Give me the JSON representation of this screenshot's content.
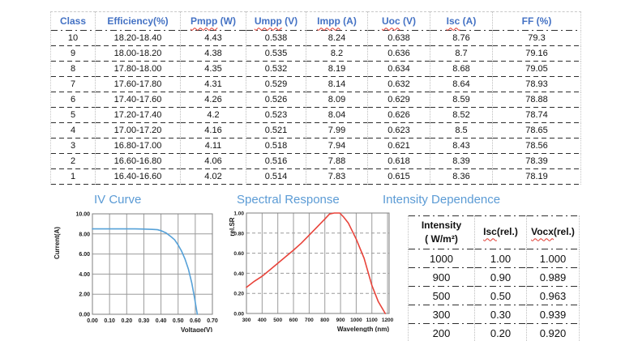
{
  "colors": {
    "header_blue": "#4472c4",
    "title_blue": "#5b9bd5",
    "iv_line": "#56a1d8",
    "sr_line": "#e8433a",
    "squiggle_red": "#e0372e",
    "grid_gray": "#9b9b9b",
    "plot_border": "#7f7f7f"
  },
  "class_table": {
    "headers": [
      {
        "wavy": "",
        "rest": "Class"
      },
      {
        "wavy": "",
        "rest": "Efficiency(%)"
      },
      {
        "wavy": "Pmpp",
        "rest": " (W)"
      },
      {
        "wavy": "Umpp",
        "rest": " (V)"
      },
      {
        "wavy": "Impp",
        "rest": " (A)"
      },
      {
        "wavy": "Uoc",
        "rest": " (V)"
      },
      {
        "wavy": "Isc",
        "rest": " (A)"
      },
      {
        "wavy": "",
        "rest": "FF (%)"
      }
    ],
    "rows": [
      [
        "10",
        "18.20-18.40",
        "4.43",
        "0.538",
        "8.24",
        "0.638",
        "8.76",
        "79.3"
      ],
      [
        "9",
        "18.00-18.20",
        "4.38",
        "0.535",
        "8.2",
        "0.636",
        "8.7",
        "79.16"
      ],
      [
        "8",
        "17.80-18.00",
        "4.35",
        "0.532",
        "8.19",
        "0.634",
        "8.68",
        "79.05"
      ],
      [
        "7",
        "17.60-17.80",
        "4.31",
        "0.529",
        "8.14",
        "0.632",
        "8.64",
        "78.93"
      ],
      [
        "6",
        "17.40-17.60",
        "4.26",
        "0.526",
        "8.09",
        "0.629",
        "8.59",
        "78.88"
      ],
      [
        "5",
        "17.20-17.40",
        "4.2",
        "0.523",
        "8.04",
        "0.626",
        "8.52",
        "78.74"
      ],
      [
        "4",
        "17.00-17.20",
        "4.16",
        "0.521",
        "7.99",
        "0.623",
        "8.5",
        "78.65"
      ],
      [
        "3",
        "16.80-17.00",
        "4.11",
        "0.518",
        "7.94",
        "0.621",
        "8.43",
        "78.56"
      ],
      [
        "2",
        "16.60-16.80",
        "4.06",
        "0.516",
        "7.88",
        "0.618",
        "8.39",
        "78.39"
      ],
      [
        "1",
        "16.40-16.60",
        "4.02",
        "0.514",
        "7.83",
        "0.615",
        "8.36",
        "78.19"
      ]
    ]
  },
  "sections": {
    "iv_title": "IV Curve",
    "sr_title": "Spectral Response",
    "intensity_title": "Intensity Dependence"
  },
  "intensity_table": {
    "header_intensity_line1": "Intensity",
    "header_intensity_line2": "( W/m²)",
    "header_isc": {
      "wavy": "Isc",
      "rest": "(rel.)"
    },
    "header_voc": {
      "wavy": "Vocx",
      "rest": "(rel.)"
    },
    "rows": [
      [
        "1000",
        "1.00",
        "1.000"
      ],
      [
        "900",
        "0.90",
        "0.989"
      ],
      [
        "500",
        "0.50",
        "0.963"
      ],
      [
        "300",
        "0.30",
        "0.939"
      ],
      [
        "200",
        "0.20",
        "0.920"
      ]
    ]
  },
  "chart_data": [
    {
      "type": "line",
      "title": "IV Curve",
      "xlabel": "Voltage(V)",
      "ylabel": "Current(A)",
      "xlim": [
        0,
        0.7
      ],
      "ylim": [
        0,
        10
      ],
      "xtick_vals": [
        0,
        0.1,
        0.2,
        0.3,
        0.4,
        0.5,
        0.6,
        0.7
      ],
      "xtick_labels": [
        "0.00",
        "0.10",
        "0.20",
        "0.30",
        "0.40",
        "0.50",
        "0.60",
        "0.70"
      ],
      "ytick_vals": [
        0,
        2,
        4,
        6,
        8,
        10
      ],
      "ytick_labels": [
        "0.00",
        "2.00",
        "4.00",
        "6.00",
        "8.00",
        "10.00"
      ],
      "grid": "solid",
      "hgrid_dashed": false,
      "legend": "none",
      "line_color": "#56a1d8",
      "points": [
        [
          0,
          8.5
        ],
        [
          0.05,
          8.5
        ],
        [
          0.1,
          8.5
        ],
        [
          0.15,
          8.5
        ],
        [
          0.2,
          8.5
        ],
        [
          0.25,
          8.5
        ],
        [
          0.3,
          8.48
        ],
        [
          0.35,
          8.45
        ],
        [
          0.38,
          8.42
        ],
        [
          0.4,
          8.32
        ],
        [
          0.43,
          8.1
        ],
        [
          0.46,
          7.7
        ],
        [
          0.48,
          7.4
        ],
        [
          0.5,
          6.9
        ],
        [
          0.52,
          6.3
        ],
        [
          0.54,
          5.5
        ],
        [
          0.56,
          4.5
        ],
        [
          0.58,
          3.1
        ],
        [
          0.595,
          1.7
        ],
        [
          0.605,
          0.7
        ],
        [
          0.612,
          0
        ]
      ]
    },
    {
      "type": "line",
      "title": "Spectral Response",
      "xlabel": "Wavelength (nm)",
      "ylabel": "rel.SR",
      "xlim": [
        300,
        1210
      ],
      "ylim": [
        0,
        1
      ],
      "xtick_vals": [
        300,
        400,
        500,
        600,
        700,
        800,
        900,
        1000,
        1100,
        1200
      ],
      "xtick_labels": [
        "300",
        "400",
        "500",
        "600",
        "700",
        "800",
        "900",
        "1000",
        "1100",
        "1200"
      ],
      "ytick_vals": [
        0,
        0.2,
        0.4,
        0.6,
        0.8,
        1.0
      ],
      "ytick_labels": [
        "0.00",
        "0.20",
        "0.40",
        "0.60",
        "0.80",
        "1.00"
      ],
      "grid": "solid-vertical",
      "hgrid_dashed": true,
      "legend": "none",
      "line_color": "#e8433a",
      "points": [
        [
          300,
          0.26
        ],
        [
          350,
          0.32
        ],
        [
          400,
          0.37
        ],
        [
          450,
          0.435
        ],
        [
          500,
          0.5
        ],
        [
          550,
          0.565
        ],
        [
          600,
          0.63
        ],
        [
          650,
          0.7
        ],
        [
          700,
          0.78
        ],
        [
          750,
          0.86
        ],
        [
          800,
          0.94
        ],
        [
          830,
          0.99
        ],
        [
          860,
          1.0
        ],
        [
          895,
          1.0
        ],
        [
          920,
          0.96
        ],
        [
          950,
          0.9
        ],
        [
          1000,
          0.74
        ],
        [
          1050,
          0.55
        ],
        [
          1100,
          0.28
        ],
        [
          1140,
          0.12
        ],
        [
          1185,
          0
        ]
      ]
    }
  ]
}
